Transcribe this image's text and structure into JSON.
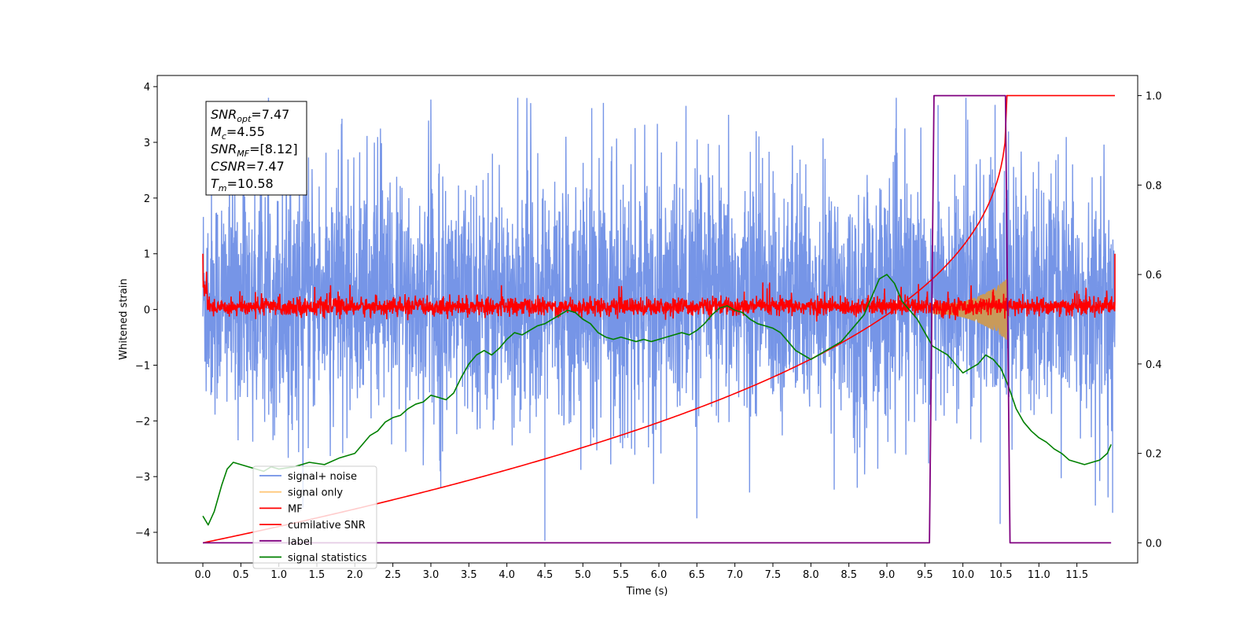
{
  "chart_data": {
    "type": "line",
    "xlabel": "Time (s)",
    "ylabel": "Whitened strain",
    "xlim": [
      -0.6,
      12.3
    ],
    "ylim": [
      -4.55,
      4.2
    ],
    "ylim_right": [
      -0.045,
      1.045
    ],
    "x_ticks": [
      0.0,
      0.5,
      1.0,
      1.5,
      2.0,
      2.5,
      3.0,
      3.5,
      4.0,
      4.5,
      5.0,
      5.5,
      6.0,
      6.5,
      7.0,
      7.5,
      8.0,
      8.5,
      9.0,
      9.5,
      10.0,
      10.5,
      11.0,
      11.5
    ],
    "x_tick_labels": [
      "0.0",
      "0.5",
      "1.0",
      "1.5",
      "2.0",
      "2.5",
      "3.0",
      "3.5",
      "4.0",
      "4.5",
      "5.0",
      "5.5",
      "6.0",
      "6.5",
      "7.0",
      "7.5",
      "8.0",
      "8.5",
      "9.0",
      "9.5",
      "10.0",
      "10.5",
      "11.0",
      "11.5"
    ],
    "y_ticks": [
      -4,
      -3,
      -2,
      -1,
      0,
      1,
      2,
      3,
      4
    ],
    "y_tick_labels": [
      "−4",
      "−3",
      "−2",
      "−1",
      "0",
      "1",
      "2",
      "3",
      "4"
    ],
    "y_right_ticks": [
      0.0,
      0.2,
      0.4,
      0.6,
      0.8,
      1.0
    ],
    "y_right_tick_labels": [
      "0.0",
      "0.2",
      "0.4",
      "0.6",
      "0.8",
      "1.0"
    ],
    "annotation": {
      "lines": [
        {
          "main": "SNR",
          "sub": "opt",
          "rest": "=7.47"
        },
        {
          "main": "M",
          "sub": "c",
          "rest": "=4.55"
        },
        {
          "main": "SNR",
          "sub": "MF",
          "rest": "=[8.12]"
        },
        {
          "main": "CSNR",
          "sub": "",
          "rest": "=7.47"
        },
        {
          "main": "T",
          "sub": "m",
          "rest": "=10.58"
        }
      ]
    },
    "legend": {
      "placement": "lower-left",
      "entries": [
        {
          "name": "signal+ noise",
          "color": "#6f8fe6"
        },
        {
          "name": "signal only",
          "color": "#ffc87a"
        },
        {
          "name": "MF",
          "color": "#ff0000"
        },
        {
          "name": "cumilative SNR",
          "color": "#ff0000"
        },
        {
          "name": "label",
          "color": "#800080"
        },
        {
          "name": "signal statistics",
          "color": "#008000"
        }
      ]
    },
    "series": [
      {
        "name": "signal+ noise",
        "axis": "left",
        "color": "#6f8fe6",
        "x_range": [
          0.0,
          12.0
        ],
        "typical_amplitude": [
          -2.2,
          2.6
        ],
        "peak_max": 3.8,
        "peak_min": -4.15
      },
      {
        "name": "signal only",
        "axis": "left",
        "color": "#ffc87a",
        "x_range": [
          9.6,
          10.58
        ],
        "envelope_start": 0.08,
        "envelope_end": 0.55
      },
      {
        "name": "MF",
        "axis": "left",
        "color": "#ff0000",
        "x_range": [
          0.0,
          12.0
        ],
        "typical_amplitude": [
          -0.15,
          0.3
        ],
        "start_value": 1.0,
        "end_value": 1.0
      },
      {
        "name": "cumilative SNR",
        "axis": "right",
        "color": "#ff0000",
        "x": [
          0.0,
          0.05,
          0.2,
          0.5,
          1.0,
          2.0,
          3.0,
          4.0,
          5.0,
          6.0,
          7.0,
          8.0,
          8.5,
          9.0,
          9.5,
          10.0,
          10.3,
          10.5,
          10.58,
          11.0,
          12.0
        ],
        "y": [
          0.0,
          0.02,
          0.04,
          0.06,
          0.08,
          0.125,
          0.165,
          0.2,
          0.235,
          0.27,
          0.31,
          0.36,
          0.395,
          0.44,
          0.5,
          0.62,
          0.75,
          0.92,
          1.0,
          1.0,
          1.0
        ]
      },
      {
        "name": "label",
        "axis": "right",
        "color": "#800080",
        "x": [
          0.0,
          9.56,
          9.62,
          10.56,
          10.62,
          11.95
        ],
        "y": [
          0.0,
          0.0,
          1.0,
          1.0,
          0.0,
          0.0
        ]
      },
      {
        "name": "signal statistics",
        "axis": "right",
        "color": "#008000",
        "x": [
          0.0,
          0.07,
          0.15,
          0.25,
          0.32,
          0.4,
          0.5,
          0.6,
          0.7,
          0.8,
          0.9,
          1.0,
          1.2,
          1.4,
          1.6,
          1.8,
          2.0,
          2.1,
          2.2,
          2.3,
          2.4,
          2.5,
          2.6,
          2.7,
          2.8,
          2.9,
          3.0,
          3.1,
          3.2,
          3.3,
          3.4,
          3.5,
          3.6,
          3.7,
          3.8,
          3.9,
          4.0,
          4.1,
          4.2,
          4.3,
          4.4,
          4.5,
          4.6,
          4.7,
          4.8,
          4.9,
          5.0,
          5.1,
          5.2,
          5.3,
          5.4,
          5.5,
          5.6,
          5.7,
          5.8,
          5.9,
          6.0,
          6.1,
          6.2,
          6.3,
          6.4,
          6.5,
          6.6,
          6.7,
          6.8,
          6.9,
          7.0,
          7.1,
          7.2,
          7.3,
          7.4,
          7.5,
          7.6,
          7.7,
          7.8,
          7.9,
          8.0,
          8.1,
          8.2,
          8.3,
          8.4,
          8.5,
          8.6,
          8.7,
          8.8,
          8.9,
          9.0,
          9.1,
          9.2,
          9.3,
          9.4,
          9.5,
          9.6,
          9.7,
          9.8,
          9.9,
          10.0,
          10.1,
          10.2,
          10.3,
          10.4,
          10.5,
          10.6,
          10.7,
          10.8,
          10.9,
          11.0,
          11.1,
          11.2,
          11.3,
          11.4,
          11.5,
          11.6,
          11.7,
          11.8,
          11.9,
          11.95
        ],
        "y": [
          0.06,
          0.04,
          0.07,
          0.13,
          0.165,
          0.18,
          0.175,
          0.17,
          0.165,
          0.16,
          0.17,
          0.165,
          0.17,
          0.18,
          0.175,
          0.19,
          0.2,
          0.22,
          0.24,
          0.25,
          0.27,
          0.28,
          0.285,
          0.3,
          0.31,
          0.315,
          0.33,
          0.325,
          0.32,
          0.335,
          0.37,
          0.4,
          0.42,
          0.43,
          0.42,
          0.435,
          0.455,
          0.47,
          0.465,
          0.475,
          0.485,
          0.49,
          0.5,
          0.51,
          0.52,
          0.515,
          0.5,
          0.49,
          0.47,
          0.46,
          0.455,
          0.46,
          0.455,
          0.45,
          0.455,
          0.45,
          0.455,
          0.46,
          0.465,
          0.47,
          0.465,
          0.475,
          0.49,
          0.51,
          0.525,
          0.53,
          0.52,
          0.515,
          0.5,
          0.49,
          0.485,
          0.48,
          0.47,
          0.45,
          0.43,
          0.42,
          0.41,
          0.42,
          0.43,
          0.44,
          0.45,
          0.47,
          0.49,
          0.51,
          0.55,
          0.59,
          0.6,
          0.58,
          0.54,
          0.52,
          0.5,
          0.47,
          0.44,
          0.43,
          0.42,
          0.4,
          0.38,
          0.39,
          0.4,
          0.42,
          0.41,
          0.39,
          0.35,
          0.3,
          0.27,
          0.25,
          0.235,
          0.225,
          0.21,
          0.2,
          0.185,
          0.18,
          0.175,
          0.18,
          0.185,
          0.2,
          0.22
        ]
      }
    ]
  }
}
